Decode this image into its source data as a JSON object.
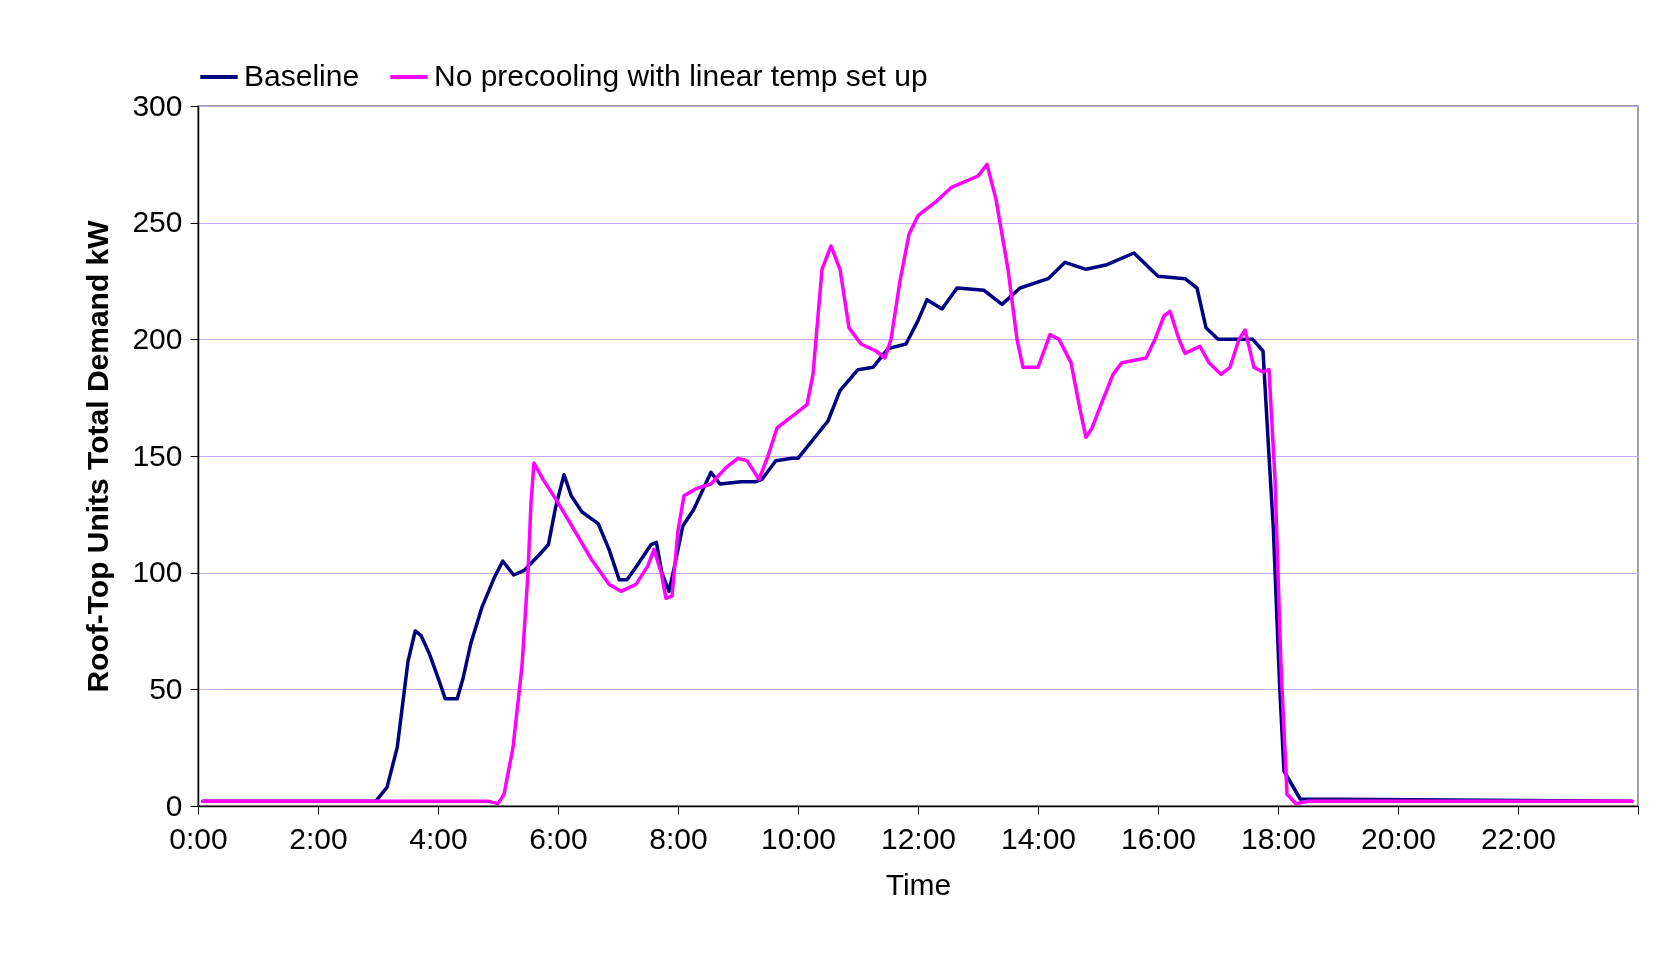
{
  "chart_data": {
    "type": "line",
    "xlabel": "Time",
    "ylabel": "Roof-Top Units Total Demand kW",
    "xlim": [
      0,
      24
    ],
    "ylim": [
      0,
      300
    ],
    "xticks": [
      {
        "value": 0,
        "label": "0:00"
      },
      {
        "value": 2,
        "label": "2:00"
      },
      {
        "value": 4,
        "label": "4:00"
      },
      {
        "value": 6,
        "label": "6:00"
      },
      {
        "value": 8,
        "label": "8:00"
      },
      {
        "value": 10,
        "label": "10:00"
      },
      {
        "value": 12,
        "label": "12:00"
      },
      {
        "value": 14,
        "label": "14:00"
      },
      {
        "value": 16,
        "label": "16:00"
      },
      {
        "value": 18,
        "label": "18:00"
      },
      {
        "value": 20,
        "label": "20:00"
      },
      {
        "value": 22,
        "label": "22:00"
      },
      {
        "value": 24,
        "label": null
      }
    ],
    "yticks": [
      0,
      50,
      100,
      150,
      200,
      250,
      300
    ],
    "grid": "y",
    "legend": "top",
    "line_style": "solid",
    "marker": "none",
    "series": [
      {
        "name": "Baseline",
        "color": "#000080",
        "x": [
          0.08,
          2.96,
          3.15,
          3.32,
          3.5,
          3.62,
          3.72,
          3.86,
          4.0,
          4.12,
          4.32,
          4.42,
          4.55,
          4.73,
          4.94,
          5.08,
          5.26,
          5.44,
          5.7,
          5.84,
          5.96,
          6.1,
          6.22,
          6.4,
          6.67,
          6.85,
          7.02,
          7.15,
          7.29,
          7.55,
          7.64,
          7.73,
          7.85,
          7.96,
          8.08,
          8.26,
          8.55,
          8.7,
          9.05,
          9.3,
          9.4,
          9.63,
          9.9,
          10.0,
          10.5,
          10.7,
          11.0,
          11.25,
          11.5,
          11.8,
          12.0,
          12.15,
          12.4,
          12.65,
          13.1,
          13.4,
          13.7,
          14.17,
          14.45,
          14.8,
          15.15,
          15.6,
          16.0,
          16.45,
          16.65,
          16.8,
          17.0,
          17.58,
          17.75,
          17.85,
          17.92,
          18.03,
          18.1,
          18.37,
          23.9
        ],
        "values": [
          2,
          2,
          8,
          25,
          62,
          75,
          73,
          65,
          55,
          46,
          46,
          55,
          70,
          85,
          98,
          105,
          99,
          101,
          108,
          112,
          128,
          142,
          133,
          126,
          121,
          110,
          97,
          97,
          102,
          112,
          113,
          100,
          92,
          105,
          120,
          127,
          143,
          138,
          139,
          139,
          140,
          148,
          149,
          149,
          165,
          178,
          187,
          188,
          196,
          198,
          208,
          217,
          213,
          222,
          221,
          215,
          222,
          226,
          233,
          230,
          232,
          237,
          227,
          226,
          222,
          205,
          200,
          200,
          195,
          150,
          120,
          50,
          15,
          3,
          2
        ]
      },
      {
        "name": "No precooling with linear temp set up",
        "color": "#ff00ff",
        "x": [
          0.08,
          4.85,
          5.0,
          5.1,
          5.25,
          5.4,
          5.5,
          5.55,
          5.6,
          5.75,
          6.0,
          6.3,
          6.55,
          6.85,
          7.05,
          7.3,
          7.5,
          7.6,
          7.72,
          7.8,
          7.9,
          8.0,
          8.1,
          8.3,
          8.55,
          8.8,
          9.0,
          9.15,
          9.35,
          9.5,
          9.65,
          9.9,
          10.15,
          10.25,
          10.4,
          10.55,
          10.7,
          10.85,
          11.05,
          11.3,
          11.45,
          11.55,
          11.7,
          11.85,
          12.0,
          12.3,
          12.55,
          13.0,
          13.15,
          13.3,
          13.5,
          13.65,
          13.75,
          14.0,
          14.1,
          14.2,
          14.35,
          14.55,
          14.7,
          14.8,
          14.9,
          15.05,
          15.25,
          15.4,
          15.8,
          15.95,
          16.1,
          16.2,
          16.35,
          16.45,
          16.7,
          16.85,
          17.05,
          17.2,
          17.35,
          17.45,
          17.6,
          17.75,
          17.85,
          17.95,
          18.05,
          18.15,
          18.3,
          18.5,
          23.9
        ],
        "values": [
          2,
          2,
          1,
          5,
          25,
          60,
          100,
          130,
          147,
          140,
          130,
          117,
          106,
          95,
          92,
          95,
          103,
          110,
          100,
          89,
          90,
          118,
          133,
          136,
          138,
          145,
          149,
          148,
          140,
          150,
          162,
          167,
          172,
          185,
          230,
          240,
          230,
          205,
          198,
          195,
          192,
          200,
          225,
          245,
          253,
          259,
          265,
          270,
          275,
          260,
          230,
          200,
          188,
          188,
          195,
          202,
          200,
          190,
          170,
          158,
          162,
          172,
          185,
          190,
          192,
          200,
          210,
          212,
          200,
          194,
          197,
          190,
          185,
          188,
          200,
          204,
          188,
          186,
          187,
          140,
          60,
          5,
          1,
          2,
          2
        ]
      }
    ]
  }
}
